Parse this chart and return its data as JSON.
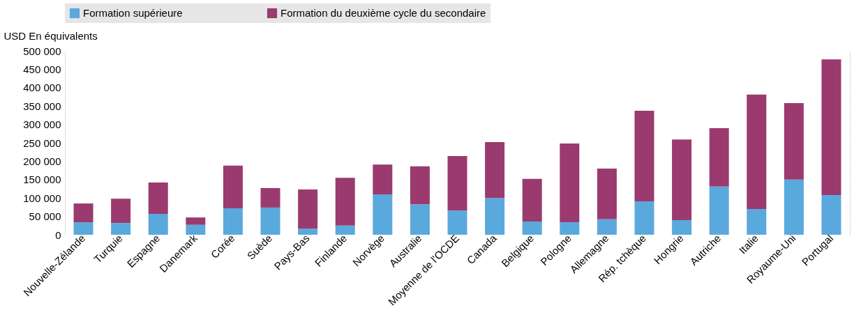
{
  "chart_data": {
    "type": "bar",
    "stacked": true,
    "ylabel": "USD En équivalents",
    "categories": [
      "Nouvelle-Zélande",
      "Turquie",
      "Espagne",
      "Danemark",
      "Corée",
      "Suède",
      "Pays-Bas",
      "Finlande",
      "Norvège",
      "Australie",
      "Moyenne de l'OCDE",
      "Canada",
      "Belgique",
      "Pologne",
      "Allemagne",
      "Rép. tchèque",
      "Hongrie",
      "Autriche",
      "Italie",
      "Royaume-Uni",
      "Portugal"
    ],
    "series": [
      {
        "name": "Formation supérieure",
        "color": "#5aa9dd",
        "values": [
          34000,
          32000,
          57000,
          27000,
          72000,
          74000,
          17000,
          25000,
          110000,
          83000,
          66000,
          100000,
          36000,
          34000,
          42000,
          91000,
          40000,
          131000,
          70000,
          150000,
          108000
        ]
      },
      {
        "name": "Formation du deuxième cycle du secondaire",
        "color": "#9b3a6f",
        "values": [
          51000,
          66000,
          85000,
          20000,
          116000,
          53000,
          106000,
          130000,
          81000,
          103000,
          148000,
          152000,
          116000,
          214000,
          138000,
          246000,
          219000,
          159000,
          311000,
          208000,
          369000
        ]
      }
    ],
    "ylim": [
      0,
      500000
    ],
    "yticks": [
      0,
      {
        "value": 50000,
        "label": "50 000"
      },
      {
        "value": 100000,
        "label": "100 000"
      },
      {
        "value": 150000,
        "label": "150 000"
      },
      {
        "value": 200000,
        "label": "200 000"
      },
      {
        "value": 250000,
        "label": "250 000"
      },
      {
        "value": 300000,
        "label": "300 000"
      },
      {
        "value": 350000,
        "label": "350 000"
      },
      {
        "value": 400000,
        "label": "400 000"
      },
      {
        "value": 450000,
        "label": "450 000"
      },
      {
        "value": 500000,
        "label": "500 000"
      }
    ],
    "grid": true,
    "legend": "top"
  }
}
